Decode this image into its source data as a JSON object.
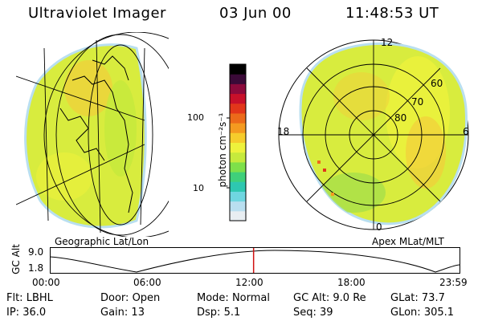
{
  "header": {
    "instrument": "Ultraviolet Imager",
    "date": "03 Jun 00",
    "time": "11:48:53 UT"
  },
  "colorbar": {
    "unit_label": "photon cm⁻²s⁻¹",
    "ticks": [
      "100",
      "10"
    ],
    "colors": [
      "#e8eef2",
      "#b9dff0",
      "#6fd6e0",
      "#2ec7b0",
      "#3fd07a",
      "#7ee04a",
      "#c6ea3c",
      "#eef23c",
      "#f6cc2c",
      "#f49a20",
      "#ec6a1a",
      "#e2361a",
      "#c8102a",
      "#8c0a3c",
      "#3a0a38",
      "#000000"
    ]
  },
  "left_panel": {
    "caption": "Geographic Lat/Lon"
  },
  "right_panel": {
    "caption": "Apex MLat/MLT",
    "mlt_labels": {
      "top": "12",
      "left": "18",
      "right": "6",
      "bottom": "0"
    },
    "lat_labels": [
      "60",
      "70",
      "80"
    ]
  },
  "timeline": {
    "axis_label": "GC Alt",
    "y_ticks": [
      "9.0",
      "1.8"
    ],
    "x_ticks": [
      "00:00",
      "06:00",
      "12:00",
      "18:00",
      "23:59"
    ],
    "current_time_fraction": 0.4964,
    "marker_color": "#d01010"
  },
  "info": {
    "row1": [
      {
        "label": "Flt:",
        "value": "LBHL"
      },
      {
        "label": "Door:",
        "value": "Open"
      },
      {
        "label": "Mode:",
        "value": "Normal"
      },
      {
        "label": "GC Alt:",
        "value": "9.0 Re"
      },
      {
        "label": "GLat:",
        "value": "73.7"
      }
    ],
    "row2": [
      {
        "label": "IP:",
        "value": "36.0"
      },
      {
        "label": "Gain:",
        "value": "13"
      },
      {
        "label": "Dsp:",
        "value": "5.1"
      },
      {
        "label": "Seq:",
        "value": "39"
      },
      {
        "label": "GLon:",
        "value": "305.1"
      }
    ]
  }
}
